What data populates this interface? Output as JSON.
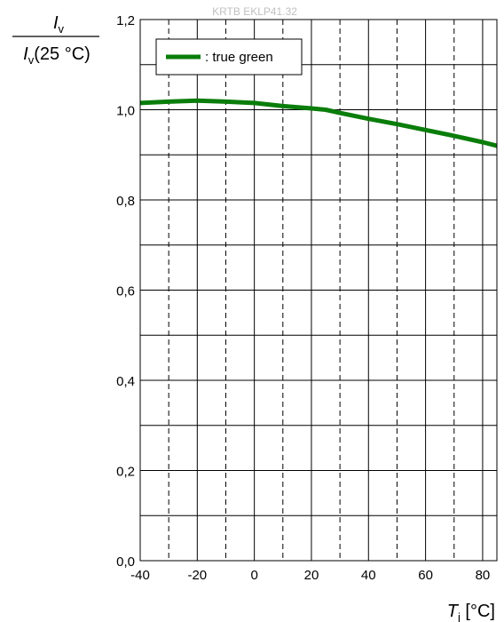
{
  "chart_data": {
    "type": "line",
    "watermark": "KRTB EKLP41.32",
    "ylabel": {
      "numerator_symbol": "I",
      "numerator_sub": "v",
      "denominator_symbol": "I",
      "denominator_sub": "v",
      "denominator_rest": "(25 °C)"
    },
    "xlabel": {
      "symbol": "T",
      "sub": "j",
      "unit": " [°C]"
    },
    "xlim": [
      -40,
      85
    ],
    "ylim": [
      0,
      1.2
    ],
    "x_ticks": [
      -40,
      -20,
      0,
      20,
      40,
      60,
      80
    ],
    "x_tick_labels": [
      "-40",
      "-20",
      "0",
      "20",
      "40",
      "60",
      "80"
    ],
    "x_minor_grid": [
      -30,
      -10,
      10,
      30,
      50,
      70
    ],
    "y_ticks": [
      0,
      0.2,
      0.4,
      0.6,
      0.8,
      1.0,
      1.2
    ],
    "y_tick_labels": [
      "0,0",
      "0,2",
      "0,4",
      "0,6",
      "0,8",
      "1,0",
      "1,2"
    ],
    "y_minor_grid": [
      0.1,
      0.3,
      0.5,
      0.7,
      0.9,
      1.1
    ],
    "grid": true,
    "legend_position": "top-left",
    "series": [
      {
        "name": ": true green",
        "color": "#0a7d0a",
        "x": [
          -40,
          -30,
          -20,
          -10,
          0,
          10,
          20,
          25,
          30,
          40,
          50,
          60,
          70,
          80,
          85
        ],
        "y": [
          1.015,
          1.018,
          1.02,
          1.018,
          1.015,
          1.008,
          1.003,
          1.0,
          0.993,
          0.98,
          0.968,
          0.955,
          0.942,
          0.928,
          0.92
        ]
      }
    ]
  }
}
